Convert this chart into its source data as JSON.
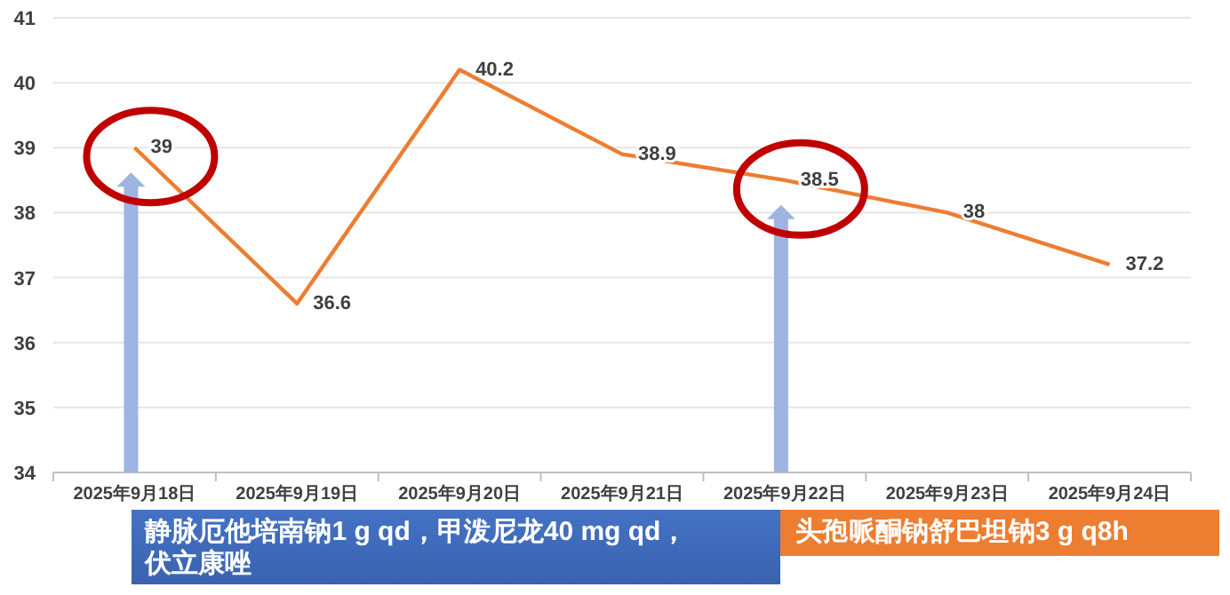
{
  "chart_data": {
    "type": "line",
    "categories": [
      "2025年9月18日",
      "2025年9月19日",
      "2025年9月20日",
      "2025年9月21日",
      "2025年9月22日",
      "2025年9月23日",
      "2025年9月24日"
    ],
    "series": [
      {
        "color": "#ed7d31",
        "values": [
          39,
          36.6,
          40.2,
          38.9,
          38.5,
          38,
          37.2
        ]
      }
    ],
    "ylim": [
      34,
      41
    ],
    "yticks": [
      34,
      35,
      36,
      37,
      38,
      39,
      40,
      41
    ],
    "grid": "y",
    "data_labels": true,
    "marker": "none",
    "line_style": "solid",
    "annotations": [
      "静脉厄他培南钠1 g qd，甲泼尼龙40 mg qd，伏立康唑",
      "头孢哌酮钠舒巴坦钠3 g q8h"
    ]
  }
}
